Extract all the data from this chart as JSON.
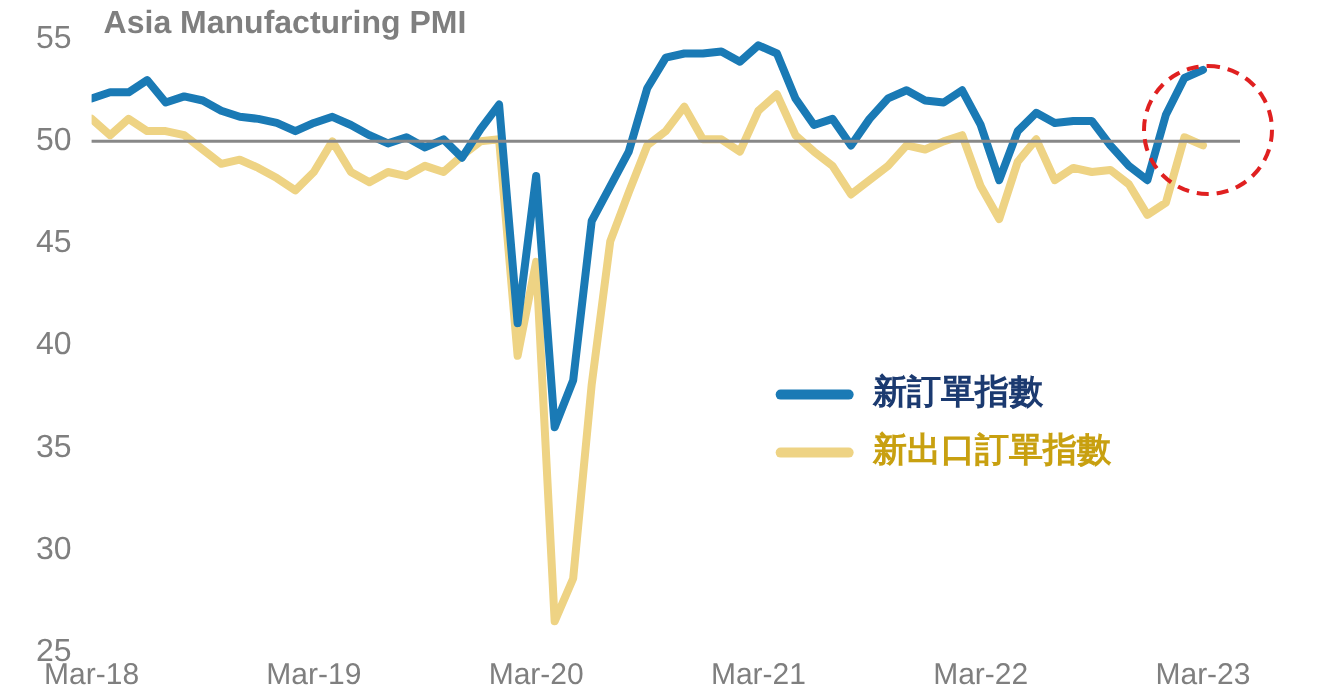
{
  "chart_data": {
    "type": "line",
    "title": "Asia Manufacturing PMI",
    "x": [
      "2018-03",
      "2018-04",
      "2018-05",
      "2018-06",
      "2018-07",
      "2018-08",
      "2018-09",
      "2018-10",
      "2018-11",
      "2018-12",
      "2019-01",
      "2019-02",
      "2019-03",
      "2019-04",
      "2019-05",
      "2019-06",
      "2019-07",
      "2019-08",
      "2019-09",
      "2019-10",
      "2019-11",
      "2019-12",
      "2020-01",
      "2020-02",
      "2020-03",
      "2020-04",
      "2020-05",
      "2020-06",
      "2020-07",
      "2020-08",
      "2020-09",
      "2020-10",
      "2020-11",
      "2020-12",
      "2021-01",
      "2021-02",
      "2021-03",
      "2021-04",
      "2021-05",
      "2021-06",
      "2021-07",
      "2021-08",
      "2021-09",
      "2021-10",
      "2021-11",
      "2021-12",
      "2022-01",
      "2022-02",
      "2022-03",
      "2022-04",
      "2022-05",
      "2022-06",
      "2022-07",
      "2022-08",
      "2022-09",
      "2022-10",
      "2022-11",
      "2022-12",
      "2023-01",
      "2023-02",
      "2023-03"
    ],
    "series": [
      {
        "name": "新訂單指數",
        "color": "#1a7ab5",
        "values": [
          52.1,
          52.4,
          52.4,
          53.0,
          51.9,
          52.2,
          52.0,
          51.5,
          51.2,
          51.1,
          50.9,
          50.5,
          50.9,
          51.2,
          50.8,
          50.3,
          49.9,
          50.2,
          49.7,
          50.1,
          49.2,
          50.6,
          51.8,
          41.1,
          48.3,
          36.0,
          38.3,
          46.1,
          47.8,
          49.5,
          52.6,
          54.1,
          54.3,
          54.3,
          54.4,
          53.9,
          54.7,
          54.3,
          52.1,
          50.8,
          51.1,
          49.8,
          51.1,
          52.1,
          52.5,
          52.0,
          51.9,
          52.5,
          50.8,
          48.1,
          50.5,
          51.4,
          50.9,
          51.0,
          51.0,
          49.8,
          48.8,
          48.1,
          51.3,
          53.1,
          53.5
        ]
      },
      {
        "name": "新出口訂單指數",
        "color": "#eed384",
        "values": [
          51.1,
          50.3,
          51.1,
          50.5,
          50.5,
          50.3,
          49.6,
          48.9,
          49.1,
          48.7,
          48.2,
          47.6,
          48.5,
          50.0,
          48.5,
          48.0,
          48.5,
          48.3,
          48.8,
          48.5,
          49.3,
          50.0,
          50.1,
          39.5,
          44.1,
          26.5,
          28.6,
          38.1,
          45.1,
          47.5,
          49.8,
          50.5,
          51.7,
          50.1,
          50.1,
          49.5,
          51.5,
          52.3,
          50.3,
          49.5,
          48.8,
          47.4,
          48.1,
          48.8,
          49.8,
          49.6,
          50.0,
          50.3,
          47.8,
          46.2,
          49.0,
          50.1,
          48.1,
          48.7,
          48.5,
          48.6,
          47.9,
          46.4,
          47.0,
          50.2,
          49.8
        ]
      }
    ],
    "xlim": [
      "2018-03",
      "2023-05"
    ],
    "xticks": [
      {
        "value": "2018-03",
        "label": "Mar-18"
      },
      {
        "value": "2019-03",
        "label": "Mar-19"
      },
      {
        "value": "2020-03",
        "label": "Mar-20"
      },
      {
        "value": "2021-03",
        "label": "Mar-21"
      },
      {
        "value": "2022-03",
        "label": "Mar-22"
      },
      {
        "value": "2023-03",
        "label": "Mar-23"
      }
    ],
    "ylim": [
      25,
      55
    ],
    "yticks": [
      25,
      30,
      35,
      40,
      45,
      50,
      55
    ],
    "ref_lines": [
      {
        "axis": "y",
        "value": 50,
        "color": "#888888"
      }
    ],
    "grid": false,
    "legend": "right",
    "marker": "none",
    "line_style": "solid"
  }
}
